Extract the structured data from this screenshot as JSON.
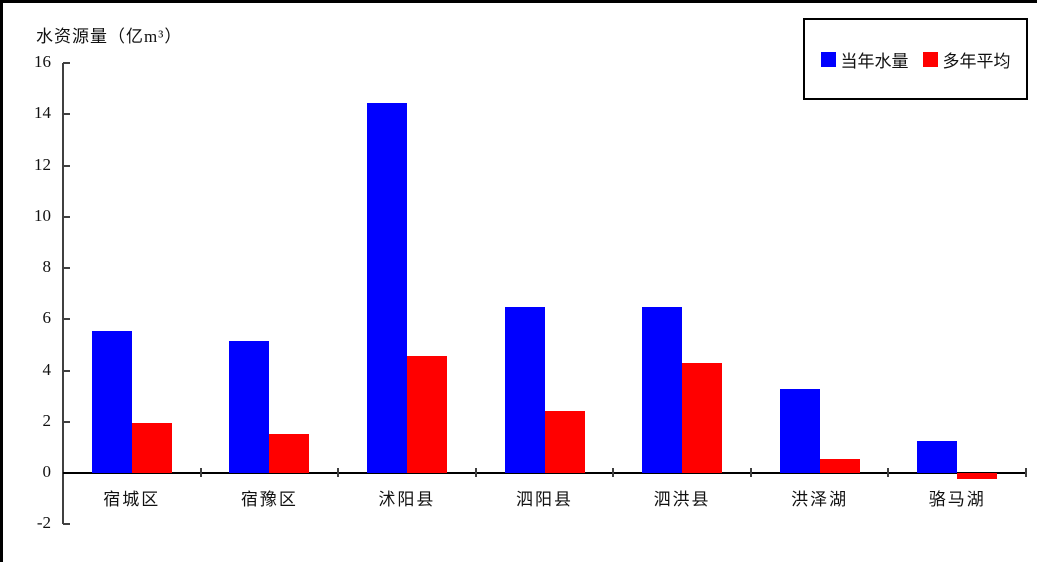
{
  "chart_data": {
    "type": "bar",
    "title": "水资源量（亿m³）",
    "categories": [
      "宿城区",
      "宿豫区",
      "沭阳县",
      "泗阳县",
      "泗洪县",
      "洪泽湖",
      "骆马湖"
    ],
    "series": [
      {
        "name": "当年水量",
        "color": "#0000ff",
        "values": [
          5.55,
          5.17,
          14.45,
          6.47,
          6.47,
          3.27,
          1.25
        ]
      },
      {
        "name": "多年平均",
        "color": "#ff0000",
        "values": [
          1.97,
          1.54,
          4.55,
          2.42,
          4.28,
          0.53,
          -0.23
        ]
      }
    ],
    "ylabel": "水资源量（亿m³）",
    "xlabel": "",
    "ylim": [
      -2,
      16
    ],
    "yticks": [
      16,
      14,
      12,
      10,
      8,
      6,
      4,
      2,
      0,
      -2
    ],
    "grid": false,
    "legend_position": "top-right",
    "axis_color": "#404040",
    "text_color": "#111111"
  }
}
